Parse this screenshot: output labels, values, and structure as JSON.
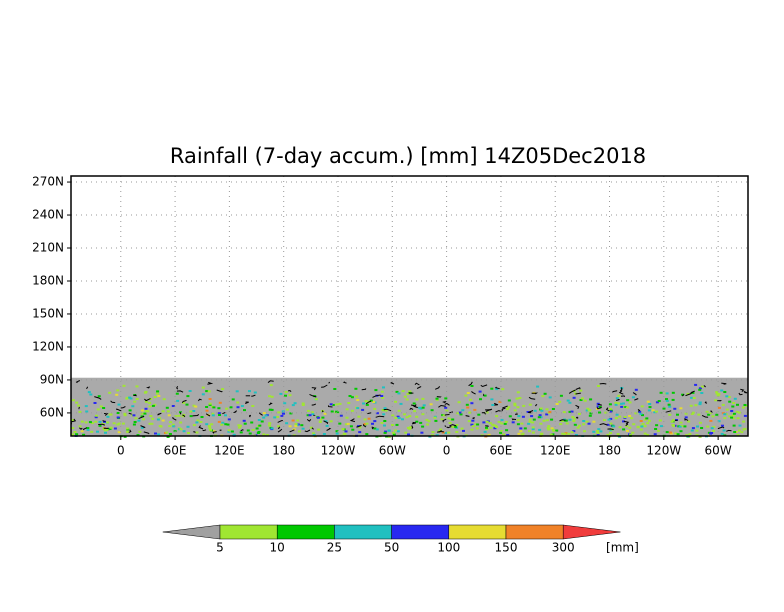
{
  "map": {
    "title": "Rainfall (7-day accum.) [mm] 14Z05Dec2018",
    "xlim": [
      -55,
      693
    ],
    "ylim": [
      39,
      275.5
    ],
    "xticks": [
      {
        "value": 0,
        "label": "0"
      },
      {
        "value": 60,
        "label": "60E"
      },
      {
        "value": 120,
        "label": "120E"
      },
      {
        "value": 180,
        "label": "180"
      },
      {
        "value": 240,
        "label": "120W"
      },
      {
        "value": 300,
        "label": "60W"
      },
      {
        "value": 360,
        "label": "0"
      },
      {
        "value": 420,
        "label": "60E"
      },
      {
        "value": 480,
        "label": "120E"
      },
      {
        "value": 540,
        "label": "180"
      },
      {
        "value": 600,
        "label": "120W"
      },
      {
        "value": 660,
        "label": "60W"
      }
    ],
    "yticks": [
      {
        "value": 60,
        "label": "60N"
      },
      {
        "value": 90,
        "label": "90N"
      },
      {
        "value": 120,
        "label": "120N"
      },
      {
        "value": 150,
        "label": "150N"
      },
      {
        "value": 180,
        "label": "180N"
      },
      {
        "value": 210,
        "label": "210N"
      },
      {
        "value": 240,
        "label": "240N"
      },
      {
        "value": 270,
        "label": "270N"
      }
    ],
    "grid": true,
    "data_lat_range": [
      39,
      92
    ],
    "background_color": "#aaaaaa"
  },
  "colorbar": {
    "levels": [
      5,
      10,
      25,
      50,
      100,
      150,
      300
    ],
    "colors": [
      "#a0a0a0",
      "#a0e632",
      "#00c800",
      "#20c0c0",
      "#2828f0",
      "#e6dc32",
      "#f08228",
      "#f03c3c"
    ],
    "unit": "[mm]"
  }
}
